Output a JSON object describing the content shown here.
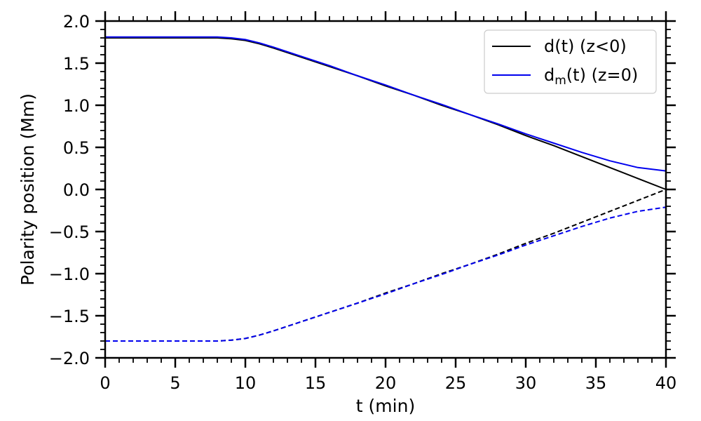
{
  "chart_data": {
    "type": "line",
    "title": "",
    "xlabel": "t (min)",
    "ylabel": "Polarity position (Mm)",
    "xlim": [
      0,
      40
    ],
    "ylim": [
      -2.0,
      2.0
    ],
    "xticks": [
      0,
      5,
      10,
      15,
      20,
      25,
      30,
      35,
      40
    ],
    "xtick_labels": [
      "0",
      "5",
      "10",
      "15",
      "20",
      "25",
      "30",
      "35",
      "40"
    ],
    "yticks": [
      2.0,
      1.5,
      1.0,
      0.5,
      0.0,
      -0.5,
      -1.0,
      -1.5,
      -2.0
    ],
    "ytick_labels": [
      "2.0",
      "1.5",
      "1.0",
      "0.5",
      "0.0",
      "−0.5",
      "−1.0",
      "−1.5",
      "−2.0"
    ],
    "grid": false,
    "legend_position": "top-right",
    "legend": [
      {
        "label": "d(t) (z<0)",
        "color": "#000000"
      },
      {
        "label_main": "d",
        "label_sub": "m",
        "label_rest": "(t) (z=0)",
        "color": "#0000ee"
      }
    ],
    "series": [
      {
        "color": "#000000",
        "style": "solid",
        "x": [
          0,
          8,
          9,
          10,
          11,
          12,
          14,
          16,
          18,
          20,
          22,
          24,
          26,
          28,
          30,
          32,
          34,
          36,
          38,
          40
        ],
        "y": [
          1.8,
          1.8,
          1.79,
          1.77,
          1.73,
          1.68,
          1.57,
          1.46,
          1.35,
          1.23,
          1.12,
          1.0,
          0.89,
          0.77,
          0.64,
          0.52,
          0.39,
          0.26,
          0.13,
          0.0
        ]
      },
      {
        "color": "#0000ee",
        "style": "solid",
        "x": [
          0,
          8,
          9,
          10,
          11,
          12,
          14,
          16,
          18,
          20,
          22,
          24,
          26,
          28,
          30,
          32,
          34,
          36,
          38,
          40
        ],
        "y": [
          1.81,
          1.81,
          1.8,
          1.78,
          1.74,
          1.69,
          1.58,
          1.47,
          1.35,
          1.24,
          1.12,
          1.01,
          0.89,
          0.78,
          0.66,
          0.55,
          0.44,
          0.34,
          0.26,
          0.22
        ]
      },
      {
        "color": "#000000",
        "style": "dashed",
        "x": [
          0,
          8,
          9,
          10,
          11,
          12,
          14,
          16,
          18,
          20,
          22,
          24,
          26,
          28,
          30,
          32,
          34,
          36,
          38,
          40
        ],
        "y": [
          -1.8,
          -1.8,
          -1.79,
          -1.77,
          -1.73,
          -1.68,
          -1.57,
          -1.46,
          -1.35,
          -1.23,
          -1.12,
          -1.0,
          -0.89,
          -0.77,
          -0.64,
          -0.52,
          -0.39,
          -0.26,
          -0.13,
          0.0
        ]
      },
      {
        "color": "#0000ee",
        "style": "dashed",
        "x": [
          0,
          8,
          9,
          10,
          11,
          12,
          14,
          16,
          18,
          20,
          22,
          24,
          26,
          28,
          30,
          32,
          34,
          36,
          38,
          40
        ],
        "y": [
          -1.8,
          -1.8,
          -1.79,
          -1.77,
          -1.73,
          -1.68,
          -1.57,
          -1.46,
          -1.35,
          -1.24,
          -1.12,
          -1.01,
          -0.89,
          -0.78,
          -0.66,
          -0.55,
          -0.44,
          -0.34,
          -0.26,
          -0.21
        ]
      }
    ]
  }
}
